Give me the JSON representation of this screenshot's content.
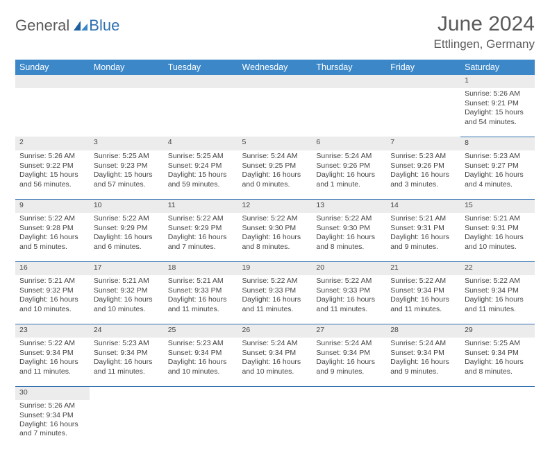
{
  "logo": {
    "text_general": "General",
    "text_blue": "Blue"
  },
  "header": {
    "month_title": "June 2024",
    "location": "Ettlingen, Germany"
  },
  "styling": {
    "header_bg": "#3b87c8",
    "header_text": "#ffffff",
    "daynum_bg": "#ececec",
    "row_border": "#2f6fb0",
    "body_text": "#444444",
    "title_color": "#5a5a5a",
    "page_bg": "#ffffff",
    "cell_font_size_pt": 8,
    "title_font_size_pt": 22,
    "location_font_size_pt": 13
  },
  "weekdays": [
    "Sunday",
    "Monday",
    "Tuesday",
    "Wednesday",
    "Thursday",
    "Friday",
    "Saturday"
  ],
  "weeks": [
    [
      null,
      null,
      null,
      null,
      null,
      null,
      {
        "d": "1",
        "sr": "Sunrise: 5:26 AM",
        "ss": "Sunset: 9:21 PM",
        "dl1": "Daylight: 15 hours",
        "dl2": "and 54 minutes."
      }
    ],
    [
      {
        "d": "2",
        "sr": "Sunrise: 5:26 AM",
        "ss": "Sunset: 9:22 PM",
        "dl1": "Daylight: 15 hours",
        "dl2": "and 56 minutes."
      },
      {
        "d": "3",
        "sr": "Sunrise: 5:25 AM",
        "ss": "Sunset: 9:23 PM",
        "dl1": "Daylight: 15 hours",
        "dl2": "and 57 minutes."
      },
      {
        "d": "4",
        "sr": "Sunrise: 5:25 AM",
        "ss": "Sunset: 9:24 PM",
        "dl1": "Daylight: 15 hours",
        "dl2": "and 59 minutes."
      },
      {
        "d": "5",
        "sr": "Sunrise: 5:24 AM",
        "ss": "Sunset: 9:25 PM",
        "dl1": "Daylight: 16 hours",
        "dl2": "and 0 minutes."
      },
      {
        "d": "6",
        "sr": "Sunrise: 5:24 AM",
        "ss": "Sunset: 9:26 PM",
        "dl1": "Daylight: 16 hours",
        "dl2": "and 1 minute."
      },
      {
        "d": "7",
        "sr": "Sunrise: 5:23 AM",
        "ss": "Sunset: 9:26 PM",
        "dl1": "Daylight: 16 hours",
        "dl2": "and 3 minutes."
      },
      {
        "d": "8",
        "sr": "Sunrise: 5:23 AM",
        "ss": "Sunset: 9:27 PM",
        "dl1": "Daylight: 16 hours",
        "dl2": "and 4 minutes."
      }
    ],
    [
      {
        "d": "9",
        "sr": "Sunrise: 5:22 AM",
        "ss": "Sunset: 9:28 PM",
        "dl1": "Daylight: 16 hours",
        "dl2": "and 5 minutes."
      },
      {
        "d": "10",
        "sr": "Sunrise: 5:22 AM",
        "ss": "Sunset: 9:29 PM",
        "dl1": "Daylight: 16 hours",
        "dl2": "and 6 minutes."
      },
      {
        "d": "11",
        "sr": "Sunrise: 5:22 AM",
        "ss": "Sunset: 9:29 PM",
        "dl1": "Daylight: 16 hours",
        "dl2": "and 7 minutes."
      },
      {
        "d": "12",
        "sr": "Sunrise: 5:22 AM",
        "ss": "Sunset: 9:30 PM",
        "dl1": "Daylight: 16 hours",
        "dl2": "and 8 minutes."
      },
      {
        "d": "13",
        "sr": "Sunrise: 5:22 AM",
        "ss": "Sunset: 9:30 PM",
        "dl1": "Daylight: 16 hours",
        "dl2": "and 8 minutes."
      },
      {
        "d": "14",
        "sr": "Sunrise: 5:21 AM",
        "ss": "Sunset: 9:31 PM",
        "dl1": "Daylight: 16 hours",
        "dl2": "and 9 minutes."
      },
      {
        "d": "15",
        "sr": "Sunrise: 5:21 AM",
        "ss": "Sunset: 9:31 PM",
        "dl1": "Daylight: 16 hours",
        "dl2": "and 10 minutes."
      }
    ],
    [
      {
        "d": "16",
        "sr": "Sunrise: 5:21 AM",
        "ss": "Sunset: 9:32 PM",
        "dl1": "Daylight: 16 hours",
        "dl2": "and 10 minutes."
      },
      {
        "d": "17",
        "sr": "Sunrise: 5:21 AM",
        "ss": "Sunset: 9:32 PM",
        "dl1": "Daylight: 16 hours",
        "dl2": "and 10 minutes."
      },
      {
        "d": "18",
        "sr": "Sunrise: 5:21 AM",
        "ss": "Sunset: 9:33 PM",
        "dl1": "Daylight: 16 hours",
        "dl2": "and 11 minutes."
      },
      {
        "d": "19",
        "sr": "Sunrise: 5:22 AM",
        "ss": "Sunset: 9:33 PM",
        "dl1": "Daylight: 16 hours",
        "dl2": "and 11 minutes."
      },
      {
        "d": "20",
        "sr": "Sunrise: 5:22 AM",
        "ss": "Sunset: 9:33 PM",
        "dl1": "Daylight: 16 hours",
        "dl2": "and 11 minutes."
      },
      {
        "d": "21",
        "sr": "Sunrise: 5:22 AM",
        "ss": "Sunset: 9:34 PM",
        "dl1": "Daylight: 16 hours",
        "dl2": "and 11 minutes."
      },
      {
        "d": "22",
        "sr": "Sunrise: 5:22 AM",
        "ss": "Sunset: 9:34 PM",
        "dl1": "Daylight: 16 hours",
        "dl2": "and 11 minutes."
      }
    ],
    [
      {
        "d": "23",
        "sr": "Sunrise: 5:22 AM",
        "ss": "Sunset: 9:34 PM",
        "dl1": "Daylight: 16 hours",
        "dl2": "and 11 minutes."
      },
      {
        "d": "24",
        "sr": "Sunrise: 5:23 AM",
        "ss": "Sunset: 9:34 PM",
        "dl1": "Daylight: 16 hours",
        "dl2": "and 11 minutes."
      },
      {
        "d": "25",
        "sr": "Sunrise: 5:23 AM",
        "ss": "Sunset: 9:34 PM",
        "dl1": "Daylight: 16 hours",
        "dl2": "and 10 minutes."
      },
      {
        "d": "26",
        "sr": "Sunrise: 5:24 AM",
        "ss": "Sunset: 9:34 PM",
        "dl1": "Daylight: 16 hours",
        "dl2": "and 10 minutes."
      },
      {
        "d": "27",
        "sr": "Sunrise: 5:24 AM",
        "ss": "Sunset: 9:34 PM",
        "dl1": "Daylight: 16 hours",
        "dl2": "and 9 minutes."
      },
      {
        "d": "28",
        "sr": "Sunrise: 5:24 AM",
        "ss": "Sunset: 9:34 PM",
        "dl1": "Daylight: 16 hours",
        "dl2": "and 9 minutes."
      },
      {
        "d": "29",
        "sr": "Sunrise: 5:25 AM",
        "ss": "Sunset: 9:34 PM",
        "dl1": "Daylight: 16 hours",
        "dl2": "and 8 minutes."
      }
    ],
    [
      {
        "d": "30",
        "sr": "Sunrise: 5:26 AM",
        "ss": "Sunset: 9:34 PM",
        "dl1": "Daylight: 16 hours",
        "dl2": "and 7 minutes."
      },
      null,
      null,
      null,
      null,
      null,
      null
    ]
  ]
}
